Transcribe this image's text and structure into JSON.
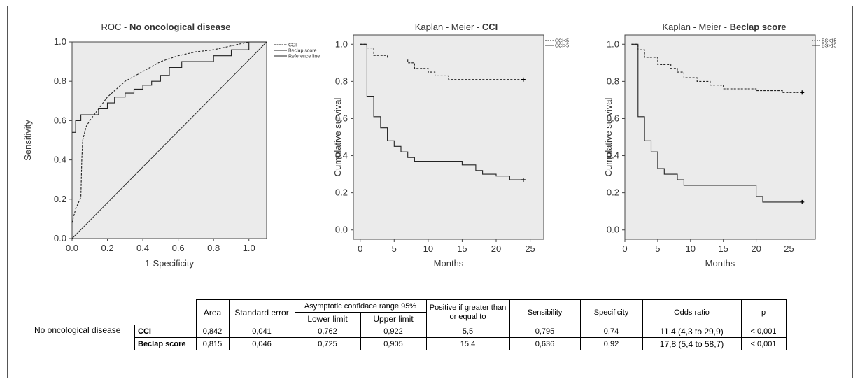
{
  "chart_data": [
    {
      "type": "line",
      "title_prefix": "ROC - ",
      "title_bold": "No oncological disease",
      "xlabel": "1-Specificity",
      "ylabel": "Sensitivity",
      "xlim": [
        0,
        1.1
      ],
      "ylim": [
        0,
        1.0
      ],
      "xticks": [
        "0.0",
        "0.2",
        "0.4",
        "0.6",
        "0.8",
        "1.0"
      ],
      "yticks": [
        "0.0",
        "0.2",
        "0.4",
        "0.6",
        "0.8",
        "1.0"
      ],
      "legend_placement": "right",
      "series": [
        {
          "name": "CCI",
          "style": "dashed",
          "points": [
            [
              0,
              0.08
            ],
            [
              0.02,
              0.15
            ],
            [
              0.05,
              0.21
            ],
            [
              0.055,
              0.4
            ],
            [
              0.06,
              0.5
            ],
            [
              0.08,
              0.57
            ],
            [
              0.1,
              0.6
            ],
            [
              0.15,
              0.66
            ],
            [
              0.2,
              0.72
            ],
            [
              0.3,
              0.8
            ],
            [
              0.4,
              0.85
            ],
            [
              0.5,
              0.9
            ],
            [
              0.6,
              0.93
            ],
            [
              0.7,
              0.95
            ],
            [
              0.8,
              0.96
            ],
            [
              0.9,
              0.98
            ],
            [
              1.0,
              1.0
            ],
            [
              1.1,
              1.0
            ]
          ]
        },
        {
          "name": "Beclap score",
          "style": "solid",
          "points": [
            [
              0,
              0.54
            ],
            [
              0.02,
              0.54
            ],
            [
              0.02,
              0.6
            ],
            [
              0.05,
              0.6
            ],
            [
              0.05,
              0.63
            ],
            [
              0.15,
              0.63
            ],
            [
              0.15,
              0.66
            ],
            [
              0.2,
              0.66
            ],
            [
              0.2,
              0.69
            ],
            [
              0.24,
              0.69
            ],
            [
              0.24,
              0.72
            ],
            [
              0.3,
              0.72
            ],
            [
              0.3,
              0.74
            ],
            [
              0.35,
              0.74
            ],
            [
              0.35,
              0.76
            ],
            [
              0.4,
              0.76
            ],
            [
              0.4,
              0.78
            ],
            [
              0.45,
              0.78
            ],
            [
              0.45,
              0.8
            ],
            [
              0.5,
              0.8
            ],
            [
              0.5,
              0.83
            ],
            [
              0.55,
              0.83
            ],
            [
              0.55,
              0.87
            ],
            [
              0.62,
              0.87
            ],
            [
              0.62,
              0.9
            ],
            [
              0.8,
              0.9
            ],
            [
              0.8,
              0.93
            ],
            [
              0.9,
              0.93
            ],
            [
              0.9,
              0.96
            ],
            [
              1.0,
              0.96
            ],
            [
              1.0,
              1.0
            ],
            [
              1.1,
              1.0
            ]
          ]
        },
        {
          "name": "Reference line",
          "style": "solid-thin",
          "points": [
            [
              0,
              0
            ],
            [
              1.1,
              1.0
            ]
          ]
        }
      ]
    },
    {
      "type": "line",
      "title_prefix": "Kaplan - Meier - ",
      "title_bold": "CCI",
      "xlabel": "Months",
      "ylabel": "Cumulative survival",
      "xlim": [
        -1,
        27
      ],
      "ylim": [
        -0.05,
        1.05
      ],
      "xticks": [
        "0",
        "5",
        "10",
        "15",
        "20",
        "25"
      ],
      "yticks": [
        "0.0",
        "0.2",
        "0.4",
        "0.6",
        "0.8",
        "1.0"
      ],
      "legend_placement": "top-right",
      "series": [
        {
          "name": "CCI<5",
          "style": "dashed",
          "points": [
            [
              0,
              1.0
            ],
            [
              1,
              1.0
            ],
            [
              1,
              0.98
            ],
            [
              2,
              0.98
            ],
            [
              2,
              0.94
            ],
            [
              4,
              0.94
            ],
            [
              4,
              0.92
            ],
            [
              7,
              0.92
            ],
            [
              7,
              0.9
            ],
            [
              8,
              0.9
            ],
            [
              8,
              0.87
            ],
            [
              10,
              0.87
            ],
            [
              10,
              0.85
            ],
            [
              11,
              0.85
            ],
            [
              11,
              0.83
            ],
            [
              13,
              0.83
            ],
            [
              13,
              0.81
            ],
            [
              24,
              0.81
            ]
          ]
        },
        {
          "name": "CCI>5",
          "style": "solid",
          "points": [
            [
              0,
              1.0
            ],
            [
              1,
              1.0
            ],
            [
              1,
              0.72
            ],
            [
              2,
              0.72
            ],
            [
              2,
              0.61
            ],
            [
              3,
              0.61
            ],
            [
              3,
              0.55
            ],
            [
              4,
              0.55
            ],
            [
              4,
              0.48
            ],
            [
              5,
              0.48
            ],
            [
              5,
              0.45
            ],
            [
              6,
              0.45
            ],
            [
              6,
              0.42
            ],
            [
              7,
              0.42
            ],
            [
              7,
              0.39
            ],
            [
              8,
              0.39
            ],
            [
              8,
              0.37
            ],
            [
              15,
              0.37
            ],
            [
              15,
              0.35
            ],
            [
              17,
              0.35
            ],
            [
              17,
              0.32
            ],
            [
              18,
              0.32
            ],
            [
              18,
              0.3
            ],
            [
              20,
              0.3
            ],
            [
              20,
              0.29
            ],
            [
              22,
              0.29
            ],
            [
              22,
              0.27
            ],
            [
              24,
              0.27
            ]
          ]
        }
      ],
      "censor_marks": [
        [
          24,
          0.81
        ],
        [
          24,
          0.27
        ]
      ]
    },
    {
      "type": "line",
      "title_prefix": "Kaplan - Meier - ",
      "title_bold": "Beclap score",
      "xlabel": "Months",
      "ylabel": "Cumulative survival",
      "xlim": [
        0,
        29
      ],
      "ylim": [
        -0.05,
        1.05
      ],
      "xticks": [
        "0",
        "5",
        "10",
        "15",
        "20",
        "25"
      ],
      "yticks": [
        "0.0",
        "0.2",
        "0.4",
        "0.6",
        "0.8",
        "1.0"
      ],
      "legend_placement": "top-right",
      "series": [
        {
          "name": "BS<15",
          "style": "dashed",
          "points": [
            [
              1,
              1.0
            ],
            [
              2,
              1.0
            ],
            [
              2,
              0.97
            ],
            [
              3,
              0.97
            ],
            [
              3,
              0.93
            ],
            [
              5,
              0.93
            ],
            [
              5,
              0.89
            ],
            [
              7,
              0.89
            ],
            [
              7,
              0.87
            ],
            [
              8,
              0.87
            ],
            [
              8,
              0.85
            ],
            [
              9,
              0.85
            ],
            [
              9,
              0.82
            ],
            [
              11,
              0.82
            ],
            [
              11,
              0.8
            ],
            [
              13,
              0.8
            ],
            [
              13,
              0.78
            ],
            [
              15,
              0.78
            ],
            [
              15,
              0.76
            ],
            [
              20,
              0.76
            ],
            [
              20,
              0.75
            ],
            [
              24,
              0.75
            ],
            [
              24,
              0.74
            ],
            [
              27,
              0.74
            ]
          ]
        },
        {
          "name": "BS>15",
          "style": "solid",
          "points": [
            [
              1,
              1.0
            ],
            [
              2,
              1.0
            ],
            [
              2,
              0.61
            ],
            [
              3,
              0.61
            ],
            [
              3,
              0.48
            ],
            [
              4,
              0.48
            ],
            [
              4,
              0.42
            ],
            [
              5,
              0.42
            ],
            [
              5,
              0.33
            ],
            [
              6,
              0.33
            ],
            [
              6,
              0.3
            ],
            [
              8,
              0.3
            ],
            [
              8,
              0.27
            ],
            [
              9,
              0.27
            ],
            [
              9,
              0.24
            ],
            [
              20,
              0.24
            ],
            [
              20,
              0.18
            ],
            [
              21,
              0.18
            ],
            [
              21,
              0.15
            ],
            [
              27,
              0.15
            ]
          ]
        }
      ],
      "censor_marks": [
        [
          27,
          0.74
        ],
        [
          27,
          0.15
        ]
      ]
    }
  ],
  "table": {
    "headers": {
      "area": "Area",
      "standard_error": "Standard error",
      "asymptotic_range": "Asymptotic confidace range 95%",
      "lower_limit": "Lower limit",
      "upper_limit": "Upper limit",
      "positive_if": "Positive if greater than or equal to",
      "sensibility": "Sensibility",
      "specificity": "Specificity",
      "odds_ratio": "Odds ratio",
      "p": "p"
    },
    "group_label": "No oncological disease",
    "rows": [
      {
        "name": "CCI",
        "area": "0,842",
        "standard_error": "0,041",
        "lower": "0,762",
        "upper": "0,922",
        "positive": "5,5",
        "sensibility": "0,795",
        "specificity": "0,74",
        "odds": "11,4 (4,3 to 29,9)",
        "p": "< 0,001"
      },
      {
        "name": "Beclap score",
        "area": "0,815",
        "standard_error": "0,046",
        "lower": "0,725",
        "upper": "0,905",
        "positive": "15,4",
        "sensibility": "0,636",
        "specificity": "0,92",
        "odds": "17,8 (5,4 to 58,7)",
        "p": "< 0,001"
      }
    ]
  }
}
